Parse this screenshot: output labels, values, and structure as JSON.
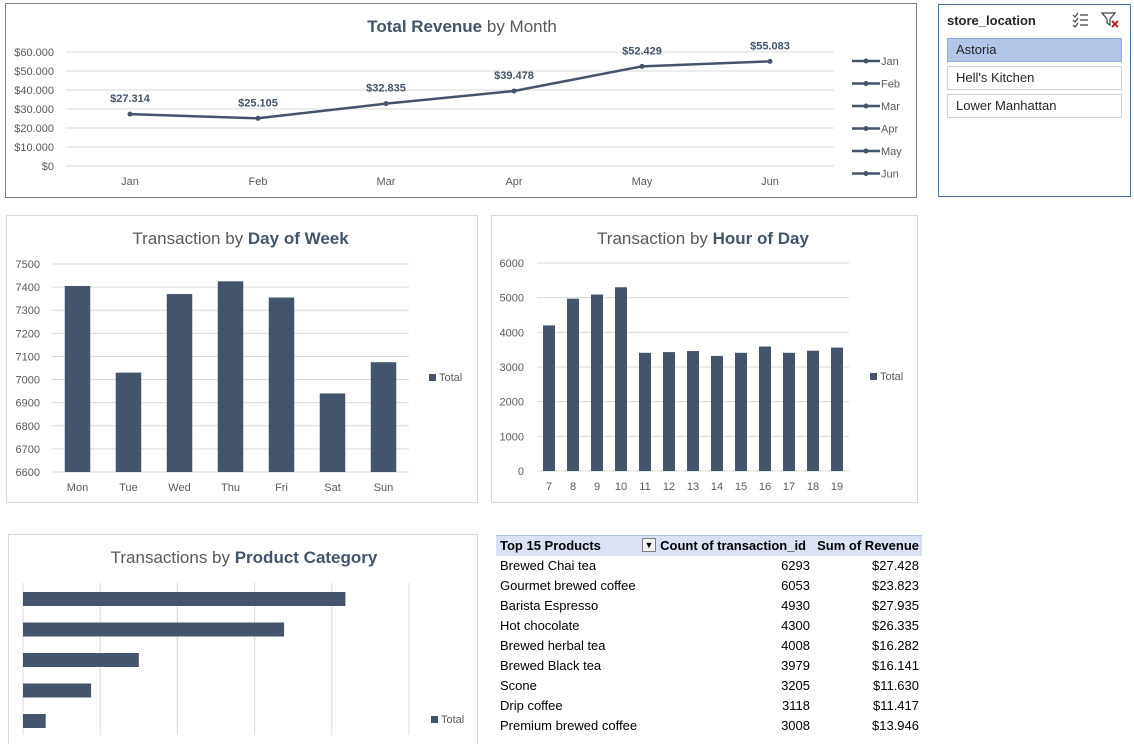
{
  "chart_data": [
    {
      "id": "revenue",
      "type": "line",
      "title_bold": "Total Revenue",
      "title_rest": " by Month",
      "categories": [
        "Jan",
        "Feb",
        "Mar",
        "Apr",
        "May",
        "Jun"
      ],
      "values": [
        27314,
        25105,
        32835,
        39478,
        52429,
        55083
      ],
      "data_labels": [
        "$27.314",
        "$25.105",
        "$32.835",
        "$39.478",
        "$52.429",
        "$55.083"
      ],
      "ylim": [
        0,
        60000
      ],
      "yticks": [
        "$0",
        "$10.000",
        "$20.000",
        "$30.000",
        "$40.000",
        "$50.000",
        "$60.000"
      ],
      "legend": [
        "Jan",
        "Feb",
        "Mar",
        "Apr",
        "May",
        "Jun"
      ],
      "legend_position": "right",
      "grid": true,
      "color": "#44546a"
    },
    {
      "id": "dow",
      "type": "bar",
      "title_rest": "Transaction by ",
      "title_bold": "Day of Week",
      "categories": [
        "Mon",
        "Tue",
        "Wed",
        "Thu",
        "Fri",
        "Sat",
        "Sun"
      ],
      "values": [
        7405,
        7030,
        7370,
        7425,
        7355,
        6940,
        7075
      ],
      "ylim": [
        6600,
        7500
      ],
      "yticks": [
        "6600",
        "6700",
        "6800",
        "6900",
        "7000",
        "7100",
        "7200",
        "7300",
        "7400",
        "7500"
      ],
      "legend": [
        "Total"
      ],
      "legend_position": "right",
      "grid": true,
      "color": "#44546a"
    },
    {
      "id": "hour",
      "type": "bar",
      "title_rest": "Transaction by ",
      "title_bold": "Hour of Day",
      "categories": [
        "7",
        "8",
        "9",
        "10",
        "11",
        "12",
        "13",
        "14",
        "15",
        "16",
        "17",
        "18",
        "19"
      ],
      "values": [
        4200,
        4970,
        5090,
        5300,
        3410,
        3430,
        3460,
        3320,
        3410,
        3590,
        3410,
        3470,
        3560
      ],
      "ylim": [
        0,
        6000
      ],
      "yticks": [
        "0",
        "1000",
        "2000",
        "3000",
        "4000",
        "5000",
        "6000"
      ],
      "legend": [
        "Total"
      ],
      "legend_position": "right",
      "grid": true,
      "color": "#44546a"
    },
    {
      "id": "category",
      "type": "bar",
      "orientation": "horizontal",
      "title_rest": "Transactions by ",
      "title_bold": "Product Category",
      "values": [
        14200,
        11500,
        5100,
        3000,
        1000
      ],
      "xlim": [
        0,
        17000
      ],
      "legend": [
        "Total"
      ],
      "legend_position": "right",
      "grid": true,
      "color": "#44546a"
    }
  ],
  "slicer": {
    "header": "store_location",
    "multi_select_icon": "multi-select-icon",
    "clear_filter_icon": "clear-filter-icon",
    "items": [
      {
        "label": "Astoria",
        "selected": true
      },
      {
        "label": "Hell's Kitchen",
        "selected": false
      },
      {
        "label": "Lower Manhattan",
        "selected": false
      }
    ]
  },
  "pivot": {
    "headers": [
      "Top 15 Products",
      "Count of transaction_id",
      "Sum of Revenue"
    ],
    "filter_icon": "filter-dropdown-icon",
    "rows": [
      [
        "Brewed Chai tea",
        "6293",
        "$27.428"
      ],
      [
        "Gourmet brewed coffee",
        "6053",
        "$23.823"
      ],
      [
        "Barista Espresso",
        "4930",
        "$27.935"
      ],
      [
        "Hot chocolate",
        "4300",
        "$26.335"
      ],
      [
        "Brewed herbal tea",
        "4008",
        "$16.282"
      ],
      [
        "Brewed Black tea",
        "3979",
        "$16.141"
      ],
      [
        "Scone",
        "3205",
        "$11.630"
      ],
      [
        "Drip coffee",
        "3118",
        "$11.417"
      ],
      [
        "Premium brewed coffee",
        "3008",
        "$13.946"
      ]
    ]
  }
}
